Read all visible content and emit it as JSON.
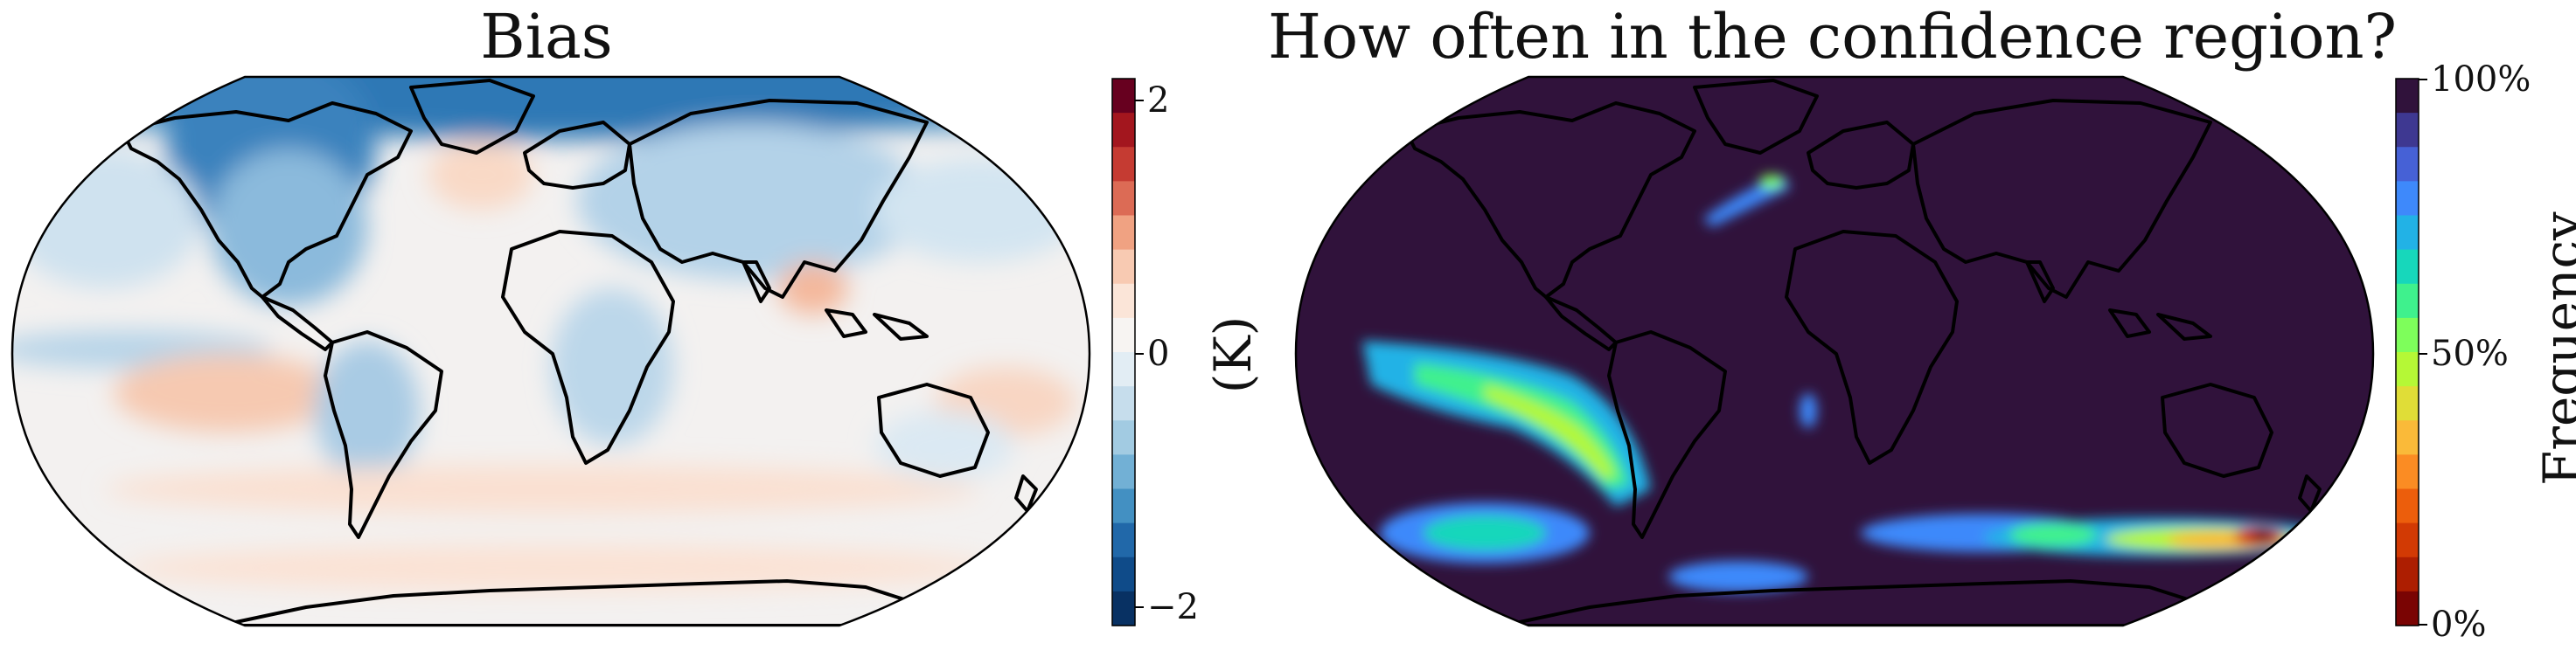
{
  "left_map": {
    "title": "Bias",
    "colorbar": {
      "label": "(K)",
      "ticks": [
        "2",
        "0",
        "−2"
      ],
      "colors": [
        "#67001f",
        "#a3161e",
        "#c53b32",
        "#dc6b55",
        "#f0a282",
        "#f8cab2",
        "#fbe5d8",
        "#f7f4f2",
        "#e2edf4",
        "#c6ddec",
        "#a2cbe2",
        "#72b0d5",
        "#4390c2",
        "#2168a9",
        "#0f4b89",
        "#083163"
      ]
    },
    "colors": {
      "ocean_bg": "#f3f1f0",
      "coast": "#000000"
    }
  },
  "right_map": {
    "title": "How often in the confidence region?",
    "colorbar": {
      "label": "Frequency",
      "ticks": [
        "100%",
        "50%",
        "0%"
      ],
      "colors": [
        "#30123b",
        "#3e3891",
        "#4661d6",
        "#3e89fb",
        "#22b2e6",
        "#17d7bb",
        "#3ff18d",
        "#7efe5b",
        "#b5f836",
        "#e0dd37",
        "#faba39",
        "#fb8c23",
        "#ec5e0c",
        "#d23a04",
        "#ad1e01",
        "#7a0403"
      ]
    },
    "colors": {
      "background": "#30123b",
      "coast": "#000000"
    }
  }
}
